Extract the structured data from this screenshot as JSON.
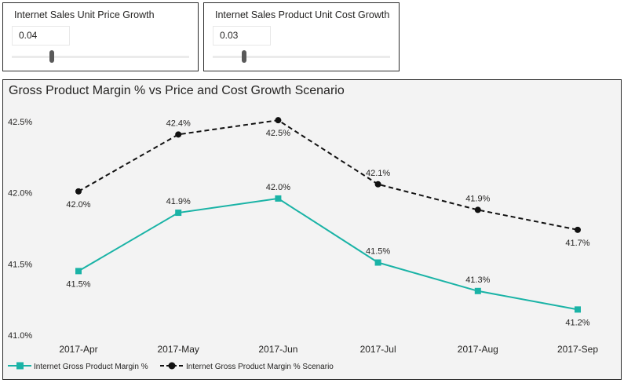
{
  "slicers": [
    {
      "title": "Internet Sales Unit Price Growth",
      "value": "0.04"
    },
    {
      "title": "Internet Sales Product Unit Cost Growth",
      "value": "0.03"
    }
  ],
  "chart": {
    "title": "Gross Product Margin % vs Price and Cost Growth Scenario"
  },
  "colors": {
    "actual": "#1ab3a6",
    "scenario": "#333333",
    "background": "#f3f3f3"
  },
  "chart_data": {
    "type": "line",
    "title": "Gross Product Margin % vs Price and Cost Growth Scenario",
    "xlabel": "",
    "ylabel": "",
    "categories": [
      "2017-Apr",
      "2017-May",
      "2017-Jun",
      "2017-Jul",
      "2017-Aug",
      "2017-Sep"
    ],
    "yticks": [
      "41.0%",
      "41.5%",
      "42.0%",
      "42.5%"
    ],
    "ylim": [
      41.0,
      42.5
    ],
    "grid": false,
    "legend_position": "bottom-left",
    "series": [
      {
        "name": "Internet Gross Product Margin %",
        "values": [
          41.45,
          41.86,
          41.96,
          41.51,
          41.31,
          41.18
        ],
        "labels": [
          "41.5%",
          "41.9%",
          "42.0%",
          "41.5%",
          "41.3%",
          "41.2%"
        ],
        "color": "#1ab3a6",
        "style": "solid",
        "marker": "square"
      },
      {
        "name": "Internet Gross Product Margin % Scenario",
        "values": [
          42.01,
          42.41,
          42.51,
          42.06,
          41.88,
          41.74
        ],
        "labels": [
          "42.0%",
          "42.4%",
          "42.5%",
          "42.1%",
          "41.9%",
          "41.7%"
        ],
        "color": "#111111",
        "style": "dashed",
        "marker": "circle"
      }
    ]
  }
}
